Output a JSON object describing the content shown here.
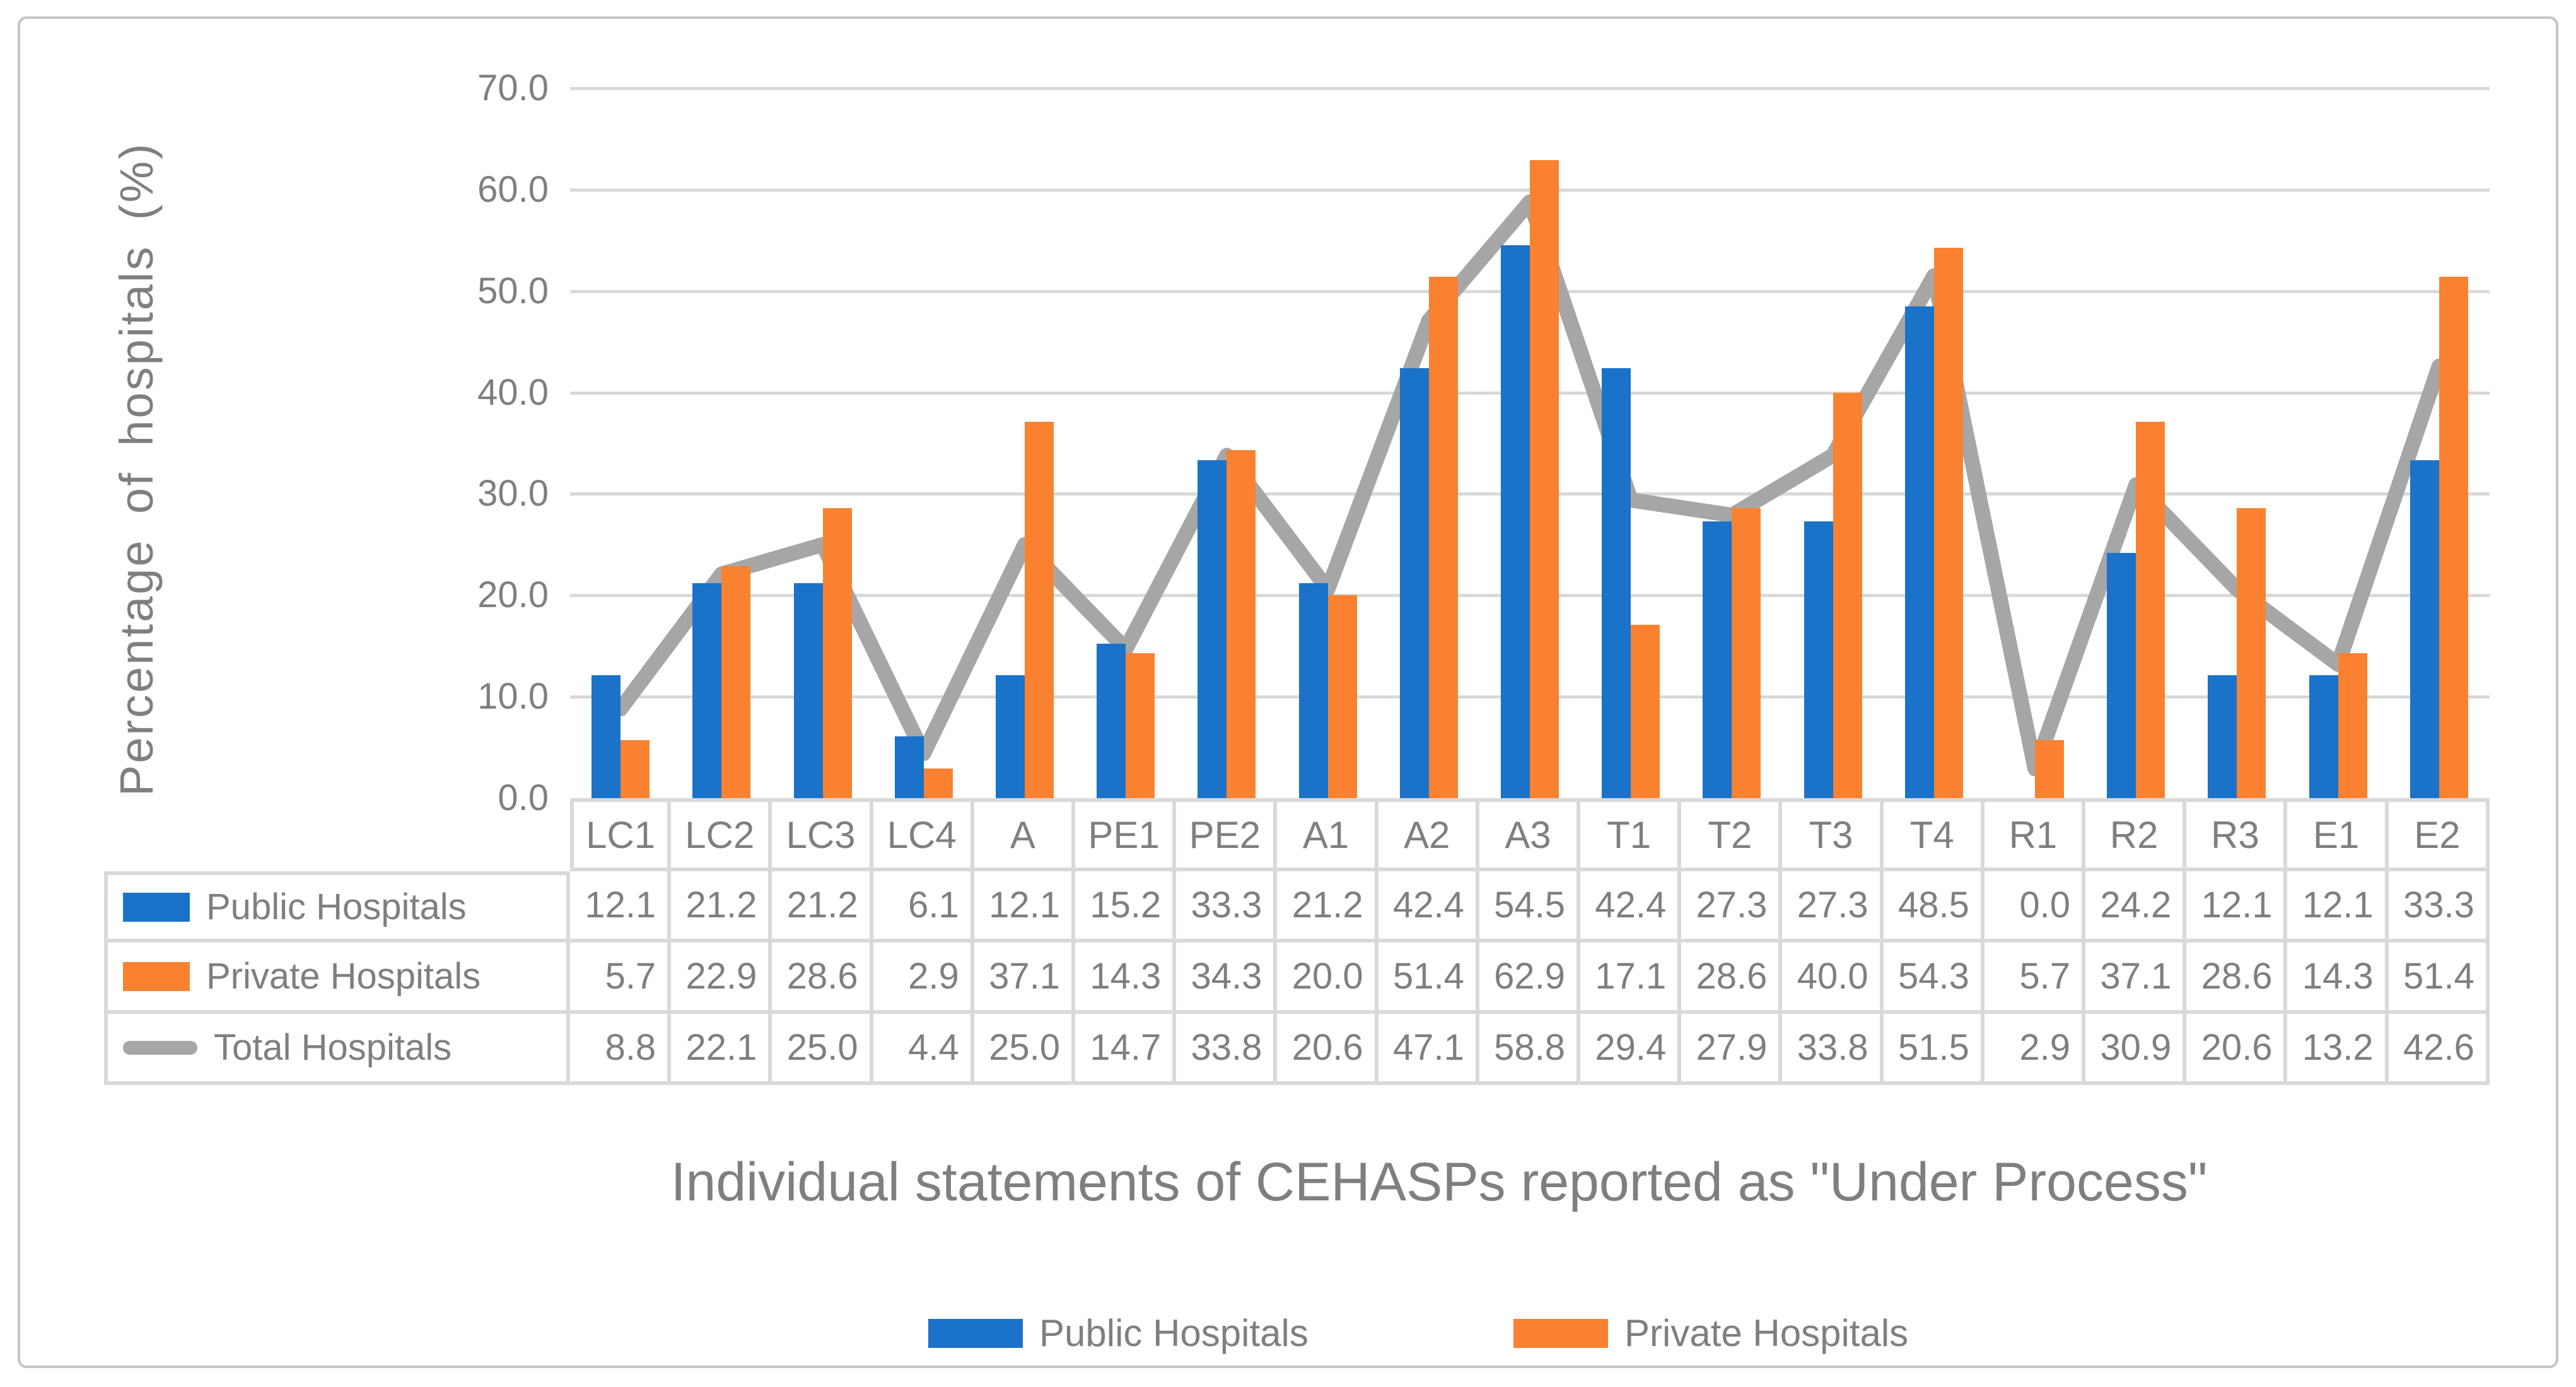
{
  "chart_data": {
    "type": "bar",
    "subtype": "combo-bar-line-with-data-table",
    "x_axis_title": "Individual statements of CEHASPs reported as \"Under Process\"",
    "y_axis_title": "Percentage of hospitals (%)",
    "categories": [
      "LC1",
      "LC2",
      "LC3",
      "LC4",
      "A",
      "PE1",
      "PE2",
      "A1",
      "A2",
      "A3",
      "T1",
      "T2",
      "T3",
      "T4",
      "R1",
      "R2",
      "R3",
      "E1",
      "E2"
    ],
    "series": [
      {
        "name": "Public Hospitals",
        "type": "bar",
        "color": "#1A72C9",
        "values": [
          12.1,
          21.2,
          21.2,
          6.1,
          12.1,
          15.2,
          33.3,
          21.2,
          42.4,
          54.5,
          42.4,
          27.3,
          27.3,
          48.5,
          0.0,
          24.2,
          12.1,
          12.1,
          33.3
        ]
      },
      {
        "name": "Private Hospitals",
        "type": "bar",
        "color": "#FA812F",
        "values": [
          5.7,
          22.9,
          28.6,
          2.9,
          37.1,
          14.3,
          34.3,
          20.0,
          51.4,
          62.9,
          17.1,
          28.6,
          40.0,
          54.3,
          5.7,
          37.1,
          28.6,
          14.3,
          51.4
        ]
      },
      {
        "name": "Total Hospitals",
        "type": "line",
        "color": "#A6A6A6",
        "values": [
          8.8,
          22.1,
          25.0,
          4.4,
          25.0,
          14.7,
          33.8,
          20.6,
          47.1,
          58.8,
          29.4,
          27.9,
          33.8,
          51.5,
          2.9,
          30.9,
          20.6,
          13.2,
          42.6
        ]
      }
    ],
    "ylim": [
      0,
      70
    ],
    "yticks": [
      "70.0",
      "60.0",
      "50.0",
      "40.0",
      "30.0",
      "20.0",
      "10.0",
      "0.0"
    ],
    "grid": true,
    "data_table_shown": true,
    "legend_position": "bottom",
    "legend_items": [
      "Public Hospitals",
      "Private Hospitals"
    ]
  },
  "colors": {
    "public_blue": "#1A72C9",
    "private_orange": "#FA812F",
    "total_gray": "#A6A6A6",
    "gridline": "#D9D9D9",
    "text_gray": "#7F7F7F",
    "frame_border": "#C5C5C5"
  }
}
